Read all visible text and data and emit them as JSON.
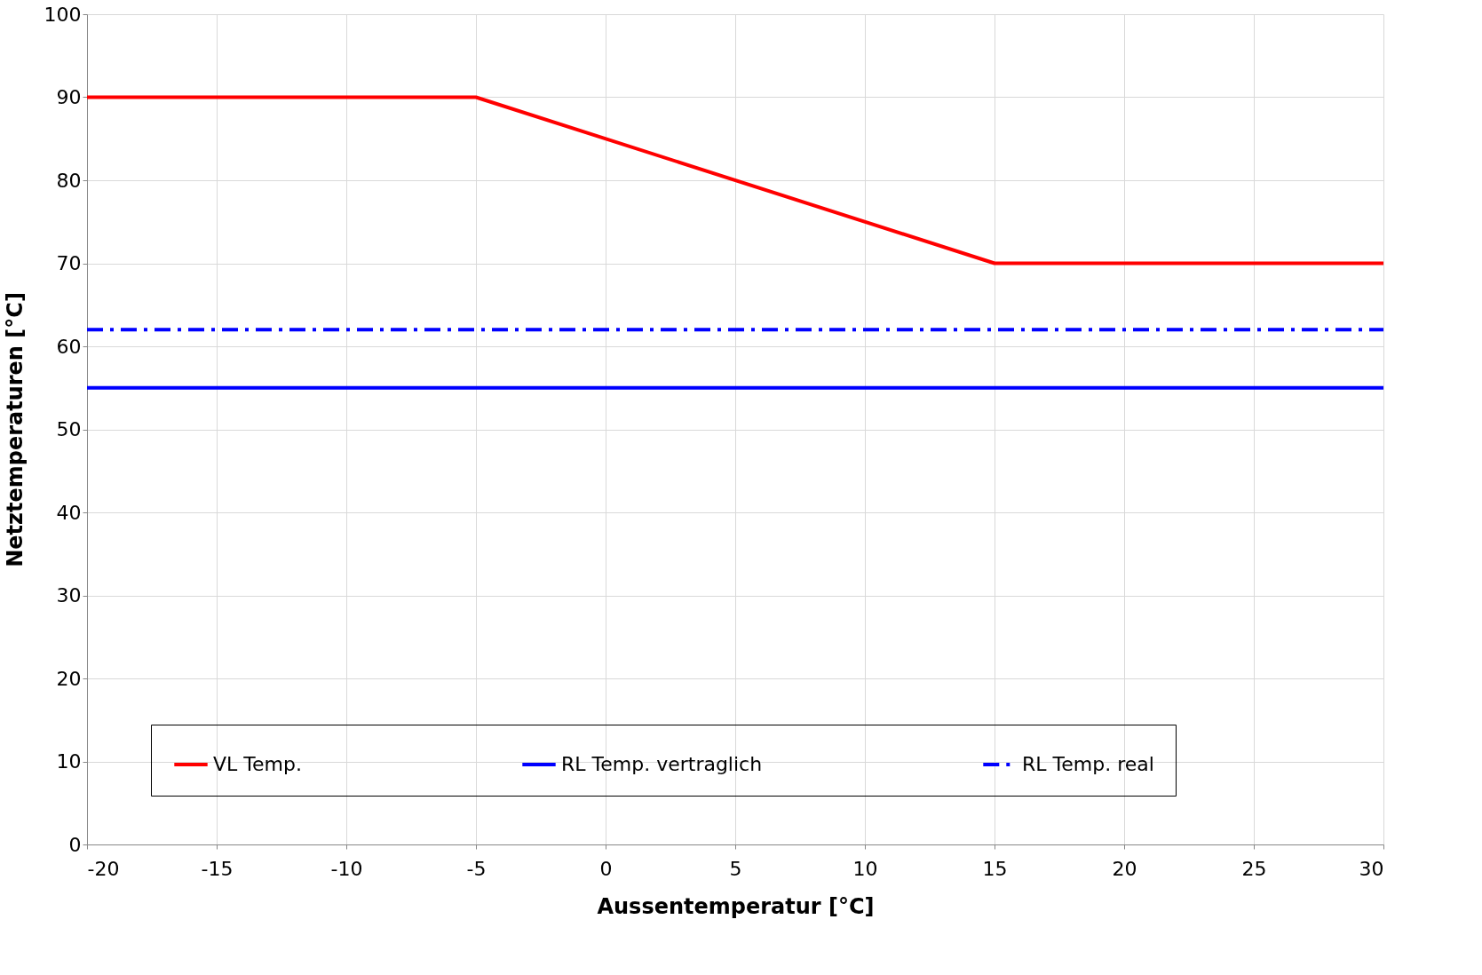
{
  "chart_data": {
    "type": "line",
    "xlabel": "Aussentemperatur [°C]",
    "ylabel": "Netztemperaturen [°C]",
    "xlim": [
      -20,
      30
    ],
    "xticks": [
      -20,
      -15,
      -10,
      -5,
      0,
      5,
      10,
      15,
      20,
      25,
      30
    ],
    "ylim": [
      0,
      100
    ],
    "yticks": [
      0,
      10,
      20,
      30,
      40,
      50,
      60,
      70,
      80,
      90,
      100
    ],
    "grid": true,
    "legend": "bottom",
    "marker": "none",
    "series": [
      {
        "name": "VL Temp.",
        "color": "#ff0000",
        "x": [
          -20,
          -5,
          15,
          30
        ],
        "values": [
          90,
          90,
          70,
          70
        ],
        "line_style": "solid"
      },
      {
        "name": "RL Temp. vertraglich",
        "color": "#0000ff",
        "x": [
          -20,
          30
        ],
        "values": [
          55,
          55
        ],
        "line_style": "solid"
      },
      {
        "name": "RL Temp. real",
        "color": "#0000ff",
        "x": [
          -20,
          30
        ],
        "values": [
          62,
          62
        ],
        "line_style": "dashdot"
      }
    ]
  }
}
